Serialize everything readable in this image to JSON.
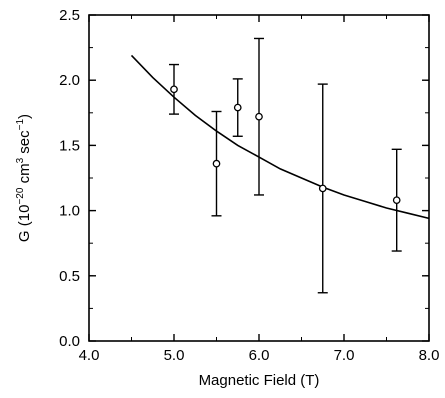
{
  "chart_data": {
    "type": "scatter",
    "title": "",
    "xlabel": "Magnetic Field (T)",
    "ylabel": {
      "prefix": "G (10",
      "exp1": "−20",
      "mid": " cm",
      "exp2": "3",
      "mid2": " sec",
      "exp3": "−1",
      "suffix": ")"
    },
    "xlim": [
      4.0,
      8.0
    ],
    "ylim": [
      0.0,
      2.5
    ],
    "xticks": [
      4.0,
      5.0,
      6.0,
      7.0,
      8.0
    ],
    "xtick_labels": [
      "4.0",
      "5.0",
      "6.0",
      "7.0",
      "8.0"
    ],
    "yticks": [
      0.0,
      0.5,
      1.0,
      1.5,
      2.0,
      2.5
    ],
    "ytick_labels": [
      "0.0",
      "0.5",
      "1.0",
      "1.5",
      "2.0",
      "2.5"
    ],
    "grid": false,
    "points": [
      {
        "x": 5.0,
        "y": 1.93,
        "err_low": 1.74,
        "err_high": 2.12
      },
      {
        "x": 5.5,
        "y": 1.36,
        "err_low": 0.96,
        "err_high": 1.76
      },
      {
        "x": 5.75,
        "y": 1.79,
        "err_low": 1.57,
        "err_high": 2.01
      },
      {
        "x": 6.0,
        "y": 1.72,
        "err_low": 1.12,
        "err_high": 2.32
      },
      {
        "x": 6.75,
        "y": 1.17,
        "err_low": 0.37,
        "err_high": 1.97
      },
      {
        "x": 7.62,
        "y": 1.08,
        "err_low": 0.69,
        "err_high": 1.47
      }
    ],
    "fit_curve": {
      "x": [
        4.5,
        4.75,
        5.0,
        5.25,
        5.5,
        5.75,
        6.0,
        6.25,
        6.5,
        6.75,
        7.0,
        7.25,
        7.5,
        7.75,
        8.0
      ],
      "y": [
        2.19,
        2.02,
        1.87,
        1.73,
        1.61,
        1.5,
        1.41,
        1.32,
        1.25,
        1.18,
        1.12,
        1.07,
        1.02,
        0.98,
        0.94
      ]
    }
  }
}
